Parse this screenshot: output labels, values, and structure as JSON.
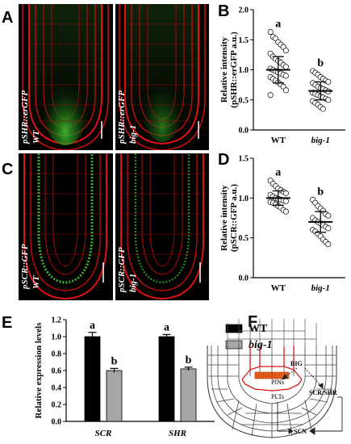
{
  "panels": {
    "A": {
      "letter": "A",
      "left_label": "pSHR::erGFP",
      "left_geno": "WT",
      "right_label": "pSHR::erGFP",
      "right_geno": "big-1"
    },
    "C": {
      "letter": "C",
      "left_label": "pSCR::GFP",
      "left_geno": "WT",
      "right_label": "pSCR::GFP",
      "right_geno": "big-1"
    },
    "F": {
      "letter": "F",
      "nodes": {
        "big": "BIG",
        "pins": "PINs",
        "plts": "PLTs",
        "scrshr": "SCR/SHR",
        "scn": "SCN"
      }
    }
  },
  "chart_data": [
    {
      "id": "B",
      "letter": "B",
      "type": "scatter",
      "ylabel_main": "Relative intensity",
      "ylabel_sub": "(pSHR::erGFP a.u.)",
      "ylim": [
        0,
        2.0
      ],
      "yticks": [
        "0.0",
        "0.5",
        "1.0",
        "1.5",
        "2.0"
      ],
      "categories": [
        "WT",
        "big-1"
      ],
      "means": [
        1.0,
        0.65
      ],
      "sd": [
        0.22,
        0.15
      ],
      "sig": [
        "a",
        "b"
      ],
      "points": [
        [
          1.63,
          1.55,
          1.52,
          1.46,
          1.42,
          1.38,
          1.32,
          1.27,
          1.22,
          1.18,
          1.15,
          1.12,
          1.08,
          1.05,
          1.02,
          1.0,
          0.98,
          0.96,
          0.94,
          0.92,
          0.9,
          0.88,
          0.85,
          0.82,
          0.79,
          0.76,
          0.72,
          0.66,
          0.58
        ],
        [
          0.98,
          0.95,
          0.92,
          0.88,
          0.85,
          0.82,
          0.8,
          0.78,
          0.75,
          0.72,
          0.7,
          0.68,
          0.66,
          0.64,
          0.62,
          0.6,
          0.58,
          0.56,
          0.54,
          0.52,
          0.5,
          0.48,
          0.45,
          0.42,
          0.38,
          0.35
        ]
      ]
    },
    {
      "id": "D",
      "letter": "D",
      "type": "scatter",
      "ylabel_main": "Relative intensity",
      "ylabel_sub": "(pSCR::GFP a.u.)",
      "ylim": [
        0,
        1.5
      ],
      "yticks": [
        "0.0",
        "0.5",
        "1.0",
        "1.5"
      ],
      "categories": [
        "WT",
        "big-1"
      ],
      "means": [
        1.0,
        0.7
      ],
      "sd": [
        0.09,
        0.13
      ],
      "sig": [
        "a",
        "b"
      ],
      "points": [
        [
          1.22,
          1.18,
          1.15,
          1.12,
          1.1,
          1.08,
          1.06,
          1.04,
          1.02,
          1.0,
          0.99,
          0.98,
          0.97,
          0.96,
          0.95,
          0.94,
          0.92,
          0.9,
          0.88,
          0.85,
          0.83
        ],
        [
          0.98,
          0.94,
          0.9,
          0.87,
          0.84,
          0.8,
          0.78,
          0.75,
          0.72,
          0.7,
          0.68,
          0.66,
          0.64,
          0.62,
          0.6,
          0.58,
          0.55,
          0.52,
          0.48,
          0.45,
          0.42
        ]
      ]
    },
    {
      "id": "E",
      "letter": "E",
      "type": "bar",
      "ylabel": "Relative expression levels",
      "ylim": [
        0,
        1.2
      ],
      "yticks": [
        "0.0",
        "0.2",
        "0.4",
        "0.6",
        "0.8",
        "1.0",
        "1.2"
      ],
      "categories": [
        "SCR",
        "SHR"
      ],
      "series": [
        {
          "name": "WT",
          "color": "#000000",
          "values": [
            1.0,
            1.0
          ],
          "err": [
            0.05,
            0.025
          ],
          "sig": [
            "a",
            "a"
          ]
        },
        {
          "name": "big-1",
          "color": "#a6a6a6",
          "values": [
            0.6,
            0.62
          ],
          "err": [
            0.025,
            0.02
          ],
          "sig": [
            "b",
            "b"
          ]
        }
      ]
    }
  ]
}
